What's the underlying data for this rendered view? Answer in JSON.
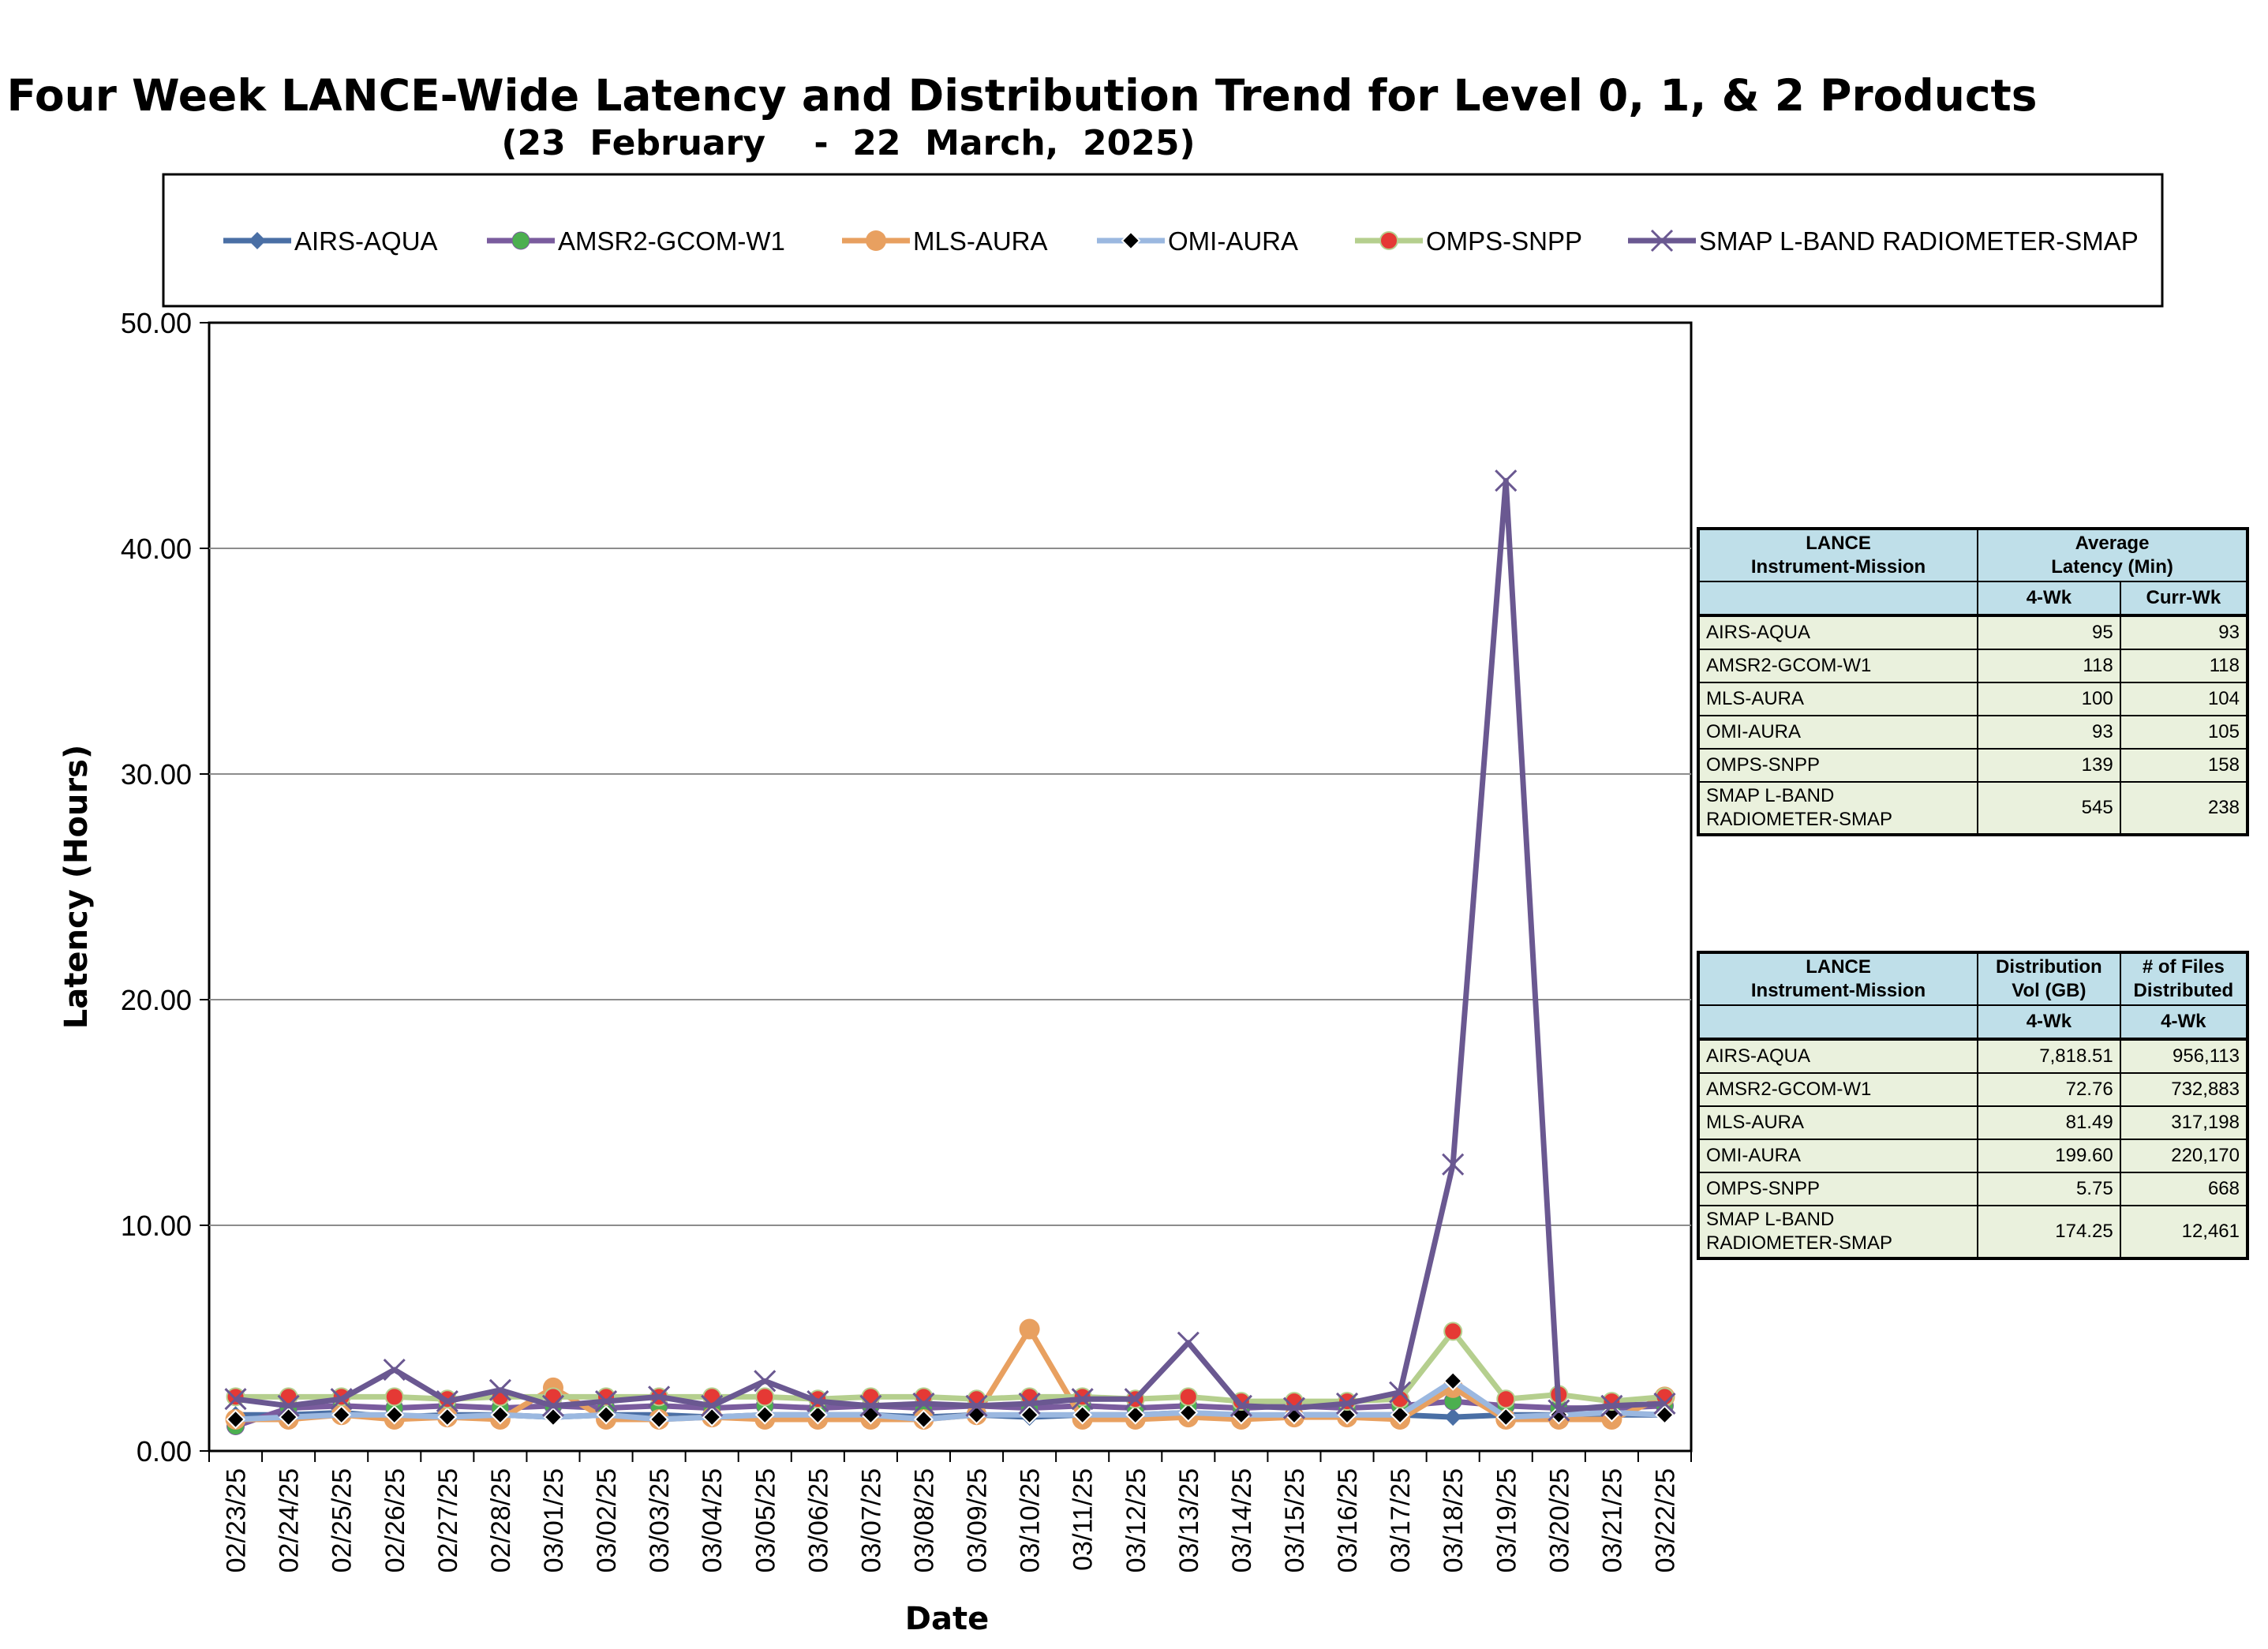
{
  "chart_data": {
    "type": "line",
    "title": "Four Week LANCE-Wide Latency and Distribution Trend for Level 0, 1, & 2 Products",
    "subtitle": "(23  February    -  22  March,  2025)",
    "xlabel": "Date",
    "ylabel": "Latency (Hours)",
    "ylim": [
      0,
      50
    ],
    "yticks": [
      "0.00",
      "10.00",
      "20.00",
      "30.00",
      "40.00",
      "50.00"
    ],
    "grid": true,
    "legend_position": "top",
    "categories": [
      "02/23/25",
      "02/24/25",
      "02/25/25",
      "02/26/25",
      "02/27/25",
      "02/28/25",
      "03/01/25",
      "03/02/25",
      "03/03/25",
      "03/04/25",
      "03/05/25",
      "03/06/25",
      "03/07/25",
      "03/08/25",
      "03/09/25",
      "03/10/25",
      "03/11/25",
      "03/12/25",
      "03/13/25",
      "03/14/25",
      "03/15/25",
      "03/16/25",
      "03/17/25",
      "03/18/25",
      "03/19/25",
      "03/20/25",
      "03/21/25",
      "03/22/25"
    ],
    "series": [
      {
        "name": "AIRS-AQUA",
        "color": "#4a6fa5",
        "marker": "diamond",
        "values": [
          1.6,
          1.6,
          1.7,
          1.5,
          1.6,
          1.6,
          1.5,
          1.6,
          1.6,
          1.5,
          1.6,
          1.6,
          1.6,
          1.5,
          1.6,
          1.5,
          1.6,
          1.6,
          1.7,
          1.5,
          1.6,
          1.6,
          1.6,
          1.5,
          1.6,
          1.6,
          1.6,
          1.6
        ]
      },
      {
        "name": "AMSR2-GCOM-W1",
        "color": "#7a5c9e",
        "marker": "circle-green",
        "values": [
          1.1,
          1.9,
          2.0,
          1.9,
          2.0,
          1.9,
          2.0,
          1.9,
          2.0,
          1.9,
          2.0,
          1.9,
          2.0,
          1.9,
          2.0,
          1.9,
          2.0,
          1.9,
          2.0,
          1.9,
          2.0,
          1.9,
          2.0,
          2.2,
          2.0,
          1.9,
          1.9,
          2.0
        ]
      },
      {
        "name": "MLS-AURA",
        "color": "#e8a060",
        "marker": "circle-orange",
        "values": [
          1.4,
          1.4,
          1.6,
          1.4,
          1.5,
          1.4,
          2.8,
          1.4,
          1.4,
          1.5,
          1.4,
          1.4,
          1.4,
          1.4,
          1.6,
          5.4,
          1.4,
          1.4,
          1.5,
          1.4,
          1.5,
          1.5,
          1.4,
          2.8,
          1.4,
          1.4,
          1.4,
          2.4
        ]
      },
      {
        "name": "OMI-AURA",
        "color": "#9bb8e0",
        "marker": "diamond-black",
        "values": [
          1.4,
          1.5,
          1.6,
          1.6,
          1.5,
          1.6,
          1.5,
          1.6,
          1.4,
          1.5,
          1.6,
          1.6,
          1.6,
          1.4,
          1.6,
          1.6,
          1.6,
          1.6,
          1.7,
          1.6,
          1.6,
          1.6,
          1.6,
          3.1,
          1.5,
          1.6,
          1.7,
          1.6
        ]
      },
      {
        "name": "OMPS-SNPP",
        "color": "#b5cf8e",
        "marker": "dot-red",
        "values": [
          2.4,
          2.4,
          2.4,
          2.4,
          2.3,
          2.4,
          2.4,
          2.4,
          2.4,
          2.4,
          2.4,
          2.3,
          2.4,
          2.4,
          2.3,
          2.4,
          2.4,
          2.3,
          2.4,
          2.2,
          2.2,
          2.2,
          2.3,
          5.3,
          2.3,
          2.5,
          2.2,
          2.4
        ]
      },
      {
        "name": "SMAP L-BAND RADIOMETER-SMAP",
        "color": "#6a5891",
        "marker": "x",
        "values": [
          2.3,
          2.0,
          2.3,
          3.6,
          2.2,
          2.7,
          2.0,
          2.2,
          2.4,
          2.0,
          3.1,
          2.2,
          2.0,
          2.1,
          2.0,
          2.1,
          2.3,
          2.3,
          4.8,
          2.0,
          1.9,
          2.1,
          2.6,
          12.7,
          43.0,
          1.8,
          2.0,
          2.1
        ]
      }
    ]
  },
  "latency_table": {
    "header_col1": [
      "LANCE",
      "Instrument-Mission"
    ],
    "header_group": [
      "Average",
      "Latency (Min)"
    ],
    "sub_headers": [
      "4-Wk",
      "Curr-Wk"
    ],
    "rows": [
      {
        "name": "AIRS-AQUA",
        "wk4": "95",
        "curr": "93"
      },
      {
        "name": "AMSR2-GCOM-W1",
        "wk4": "118",
        "curr": "118"
      },
      {
        "name": "MLS-AURA",
        "wk4": "100",
        "curr": "104"
      },
      {
        "name": "OMI-AURA",
        "wk4": "93",
        "curr": "105"
      },
      {
        "name": "OMPS-SNPP",
        "wk4": "139",
        "curr": "158"
      },
      {
        "name": "SMAP L-BAND RADIOMETER-SMAP",
        "wk4": "545",
        "curr": "238"
      }
    ]
  },
  "distribution_table": {
    "header_col1": [
      "LANCE",
      "Instrument-Mission"
    ],
    "header_col2": [
      "Distribution",
      "Vol (GB)"
    ],
    "header_col3": [
      "# of Files",
      "Distributed"
    ],
    "sub_headers": [
      "4-Wk",
      "4-Wk"
    ],
    "rows": [
      {
        "name": "AIRS-AQUA",
        "vol": "7,818.51",
        "files": "956,113"
      },
      {
        "name": "AMSR2-GCOM-W1",
        "vol": "72.76",
        "files": "732,883"
      },
      {
        "name": "MLS-AURA",
        "vol": "81.49",
        "files": "317,198"
      },
      {
        "name": "OMI-AURA",
        "vol": "199.60",
        "files": "220,170"
      },
      {
        "name": "OMPS-SNPP",
        "vol": "5.75",
        "files": "668"
      },
      {
        "name": "SMAP L-BAND RADIOMETER-SMAP",
        "vol": "174.25",
        "files": "12,461"
      }
    ]
  }
}
